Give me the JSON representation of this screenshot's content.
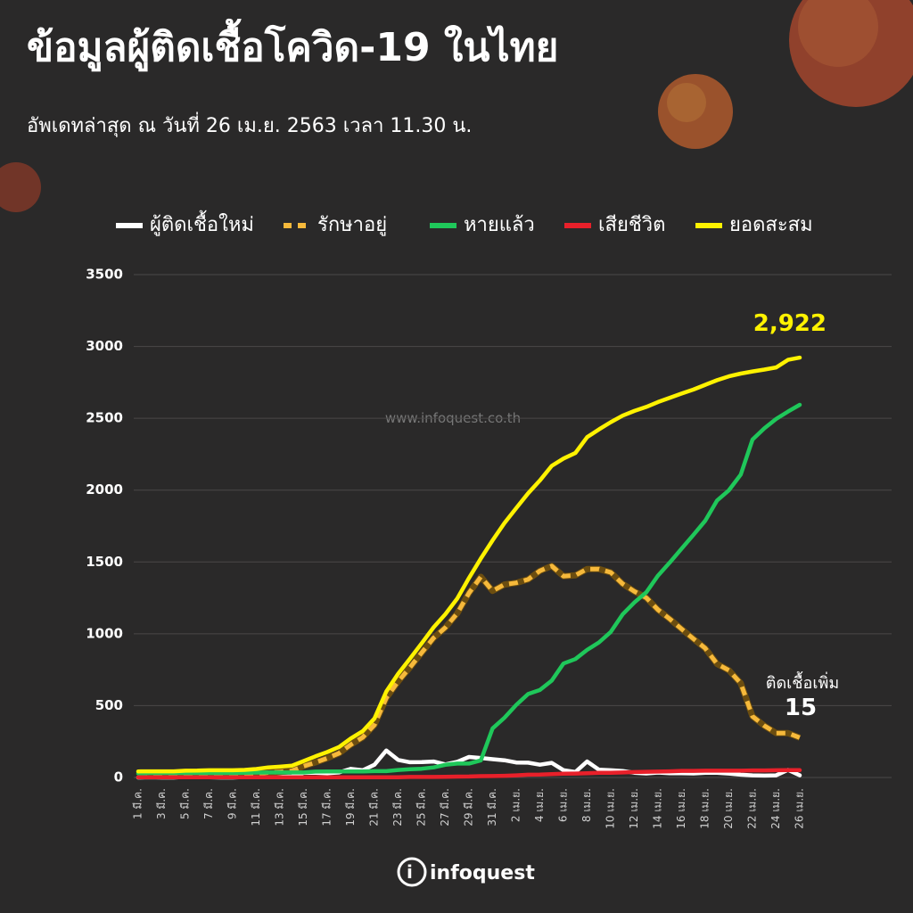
{
  "chart_data": {
    "type": "line",
    "title": "ข้อมูลผู้ติดเชื้อโควิด-19 ในไทย",
    "subtitle": "อัพเดทล่าสุด ณ วันที่ 26 เม.ย. 2563 เวลา 11.30 น.",
    "watermark": "www.infoquest.co.th",
    "logo": "infoquest",
    "annotation": "ติดเชื้อเพิ่ม",
    "categories": [
      "1 มี.ค.",
      null,
      "3 มี.ค.",
      null,
      "5 มี.ค.",
      null,
      "7 มี.ค.",
      null,
      "9 มี.ค.",
      null,
      "11 มี.ค.",
      null,
      "13 มี.ค.",
      null,
      "15 มี.ค.",
      null,
      "17 มี.ค.",
      null,
      "19 มี.ค.",
      null,
      "21 มี.ค.",
      null,
      "23 มี.ค.",
      null,
      "25 มี.ค.",
      null,
      "27 มี.ค.",
      null,
      "29 มี.ค.",
      null,
      "31 มี.ค.",
      null,
      "2 เม.ย.",
      null,
      "4 เม.ย.",
      null,
      "6 เม.ย.",
      null,
      "8 เม.ย.",
      null,
      "10 เม.ย.",
      null,
      "12 เม.ย.",
      null,
      "14 เม.ย.",
      null,
      "16 เม.ย.",
      null,
      "18 เม.ย.",
      null,
      "20 เม.ย.",
      null,
      "22 เม.ย.",
      null,
      "24 เม.ย.",
      null,
      "26 เม.ย."
    ],
    "series": [
      {
        "name": "ผู้ติดเชื้อใหม่",
        "color": "#ffffff",
        "dashed": false,
        "values": [
          0,
          1,
          0,
          0,
          4,
          1,
          2,
          0,
          0,
          3,
          6,
          11,
          5,
          7,
          32,
          33,
          30,
          35,
          60,
          50,
          89,
          188,
          122,
          106,
          107,
          111,
          91,
          109,
          143,
          136,
          127,
          120,
          104,
          103,
          89,
          102,
          51,
          38,
          111,
          54,
          50,
          45,
          33,
          28,
          34,
          30,
          29,
          28,
          33,
          32,
          27,
          19,
          15,
          13,
          15,
          53,
          15
        ]
      },
      {
        "name": "รักษาอยู่",
        "color": "#f6b93b",
        "dashed": true,
        "values": [
          13,
          11,
          11,
          11,
          15,
          16,
          18,
          18,
          18,
          19,
          24,
          34,
          39,
          46,
          78,
          105,
          134,
          169,
          229,
          279,
          366,
          554,
          668,
          766,
          869,
          971,
          1043,
          1142,
          1284,
          1396,
          1299,
          1343,
          1355,
          1378,
          1438,
          1472,
          1401,
          1407,
          1451,
          1451,
          1427,
          1348,
          1295,
          1251,
          1167,
          1103,
          1033,
          965,
          899,
          790,
          746,
          656,
          425,
          360,
          309,
          309,
          277
        ]
      },
      {
        "name": "หายแล้ว",
        "color": "#1fc75a",
        "dashed": false,
        "values": [
          28,
          31,
          31,
          31,
          31,
          31,
          31,
          31,
          31,
          33,
          34,
          35,
          35,
          35,
          35,
          41,
          42,
          42,
          42,
          42,
          44,
          44,
          52,
          57,
          61,
          70,
          88,
          97,
          97,
          119,
          342,
          416,
          505,
          581,
          609,
          674,
          793,
          824,
          888,
          940,
          1013,
          1135,
          1218,
          1288,
          1405,
          1497,
          1593,
          1689,
          1787,
          1928,
          1999,
          2108,
          2352,
          2430,
          2495,
          2547,
          2594
        ]
      },
      {
        "name": "เสียชีวิต",
        "color": "#e8202a",
        "dashed": false,
        "values": [
          1,
          1,
          1,
          1,
          1,
          1,
          1,
          1,
          1,
          1,
          1,
          1,
          1,
          1,
          1,
          1,
          1,
          1,
          1,
          1,
          1,
          1,
          1,
          4,
          4,
          4,
          5,
          6,
          7,
          9,
          10,
          12,
          15,
          19,
          20,
          23,
          26,
          27,
          30,
          32,
          33,
          35,
          38,
          40,
          41,
          43,
          46,
          46,
          47,
          47,
          47,
          47,
          49,
          49,
          50,
          51,
          51
        ]
      },
      {
        "name": "ยอดสะสม",
        "color": "#fff200",
        "dashed": false,
        "values": [
          42,
          43,
          43,
          43,
          47,
          48,
          50,
          50,
          50,
          53,
          59,
          70,
          75,
          82,
          114,
          147,
          177,
          212,
          272,
          322,
          411,
          599,
          721,
          827,
          934,
          1045,
          1136,
          1245,
          1388,
          1524,
          1651,
          1771,
          1875,
          1978,
          2067,
          2169,
          2220,
          2258,
          2369,
          2423,
          2473,
          2518,
          2551,
          2579,
          2613,
          2643,
          2672,
          2700,
          2733,
          2765,
          2792,
          2811,
          2826,
          2839,
          2854,
          2907,
          2922
        ],
        "value_labels": [
          null,
          null,
          null,
          null,
          null,
          null,
          null,
          null,
          null,
          null,
          null,
          null,
          null,
          null,
          null,
          null,
          null,
          null,
          null,
          null,
          null,
          null,
          null,
          null,
          null,
          null,
          null,
          null,
          null,
          null,
          null,
          null,
          null,
          null,
          null,
          null,
          null,
          null,
          null,
          null,
          null,
          null,
          null,
          null,
          null,
          null,
          null,
          null,
          null,
          null,
          null,
          null,
          null,
          null,
          null,
          null,
          "2,922"
        ]
      }
    ],
    "ylim": [
      0,
      3500
    ],
    "yticks": [
      0,
      500,
      1000,
      1500,
      2000,
      2500,
      3000,
      3500
    ],
    "grid": true
  }
}
